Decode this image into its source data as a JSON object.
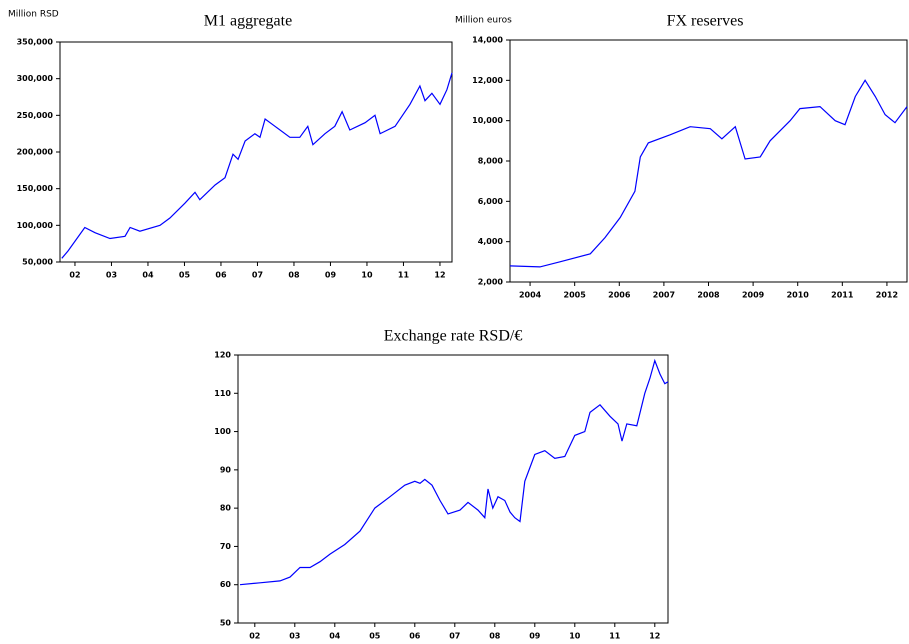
{
  "chart_data": [
    {
      "type": "line",
      "title": "M1 aggregate",
      "ylabel": "Million RSD",
      "color": "#0000ff",
      "x": [
        2002.14,
        2002.31,
        2002.77,
        2003.05,
        2003.46,
        2003.87,
        2004.01,
        2004.28,
        2004.83,
        2005.1,
        2005.51,
        2005.79,
        2005.92,
        2006.34,
        2006.61,
        2006.83,
        2006.97,
        2007.16,
        2007.43,
        2007.57,
        2007.71,
        2007.98,
        2008.39,
        2008.66,
        2008.88,
        2009.02,
        2009.35,
        2009.62,
        2009.82,
        2010.03,
        2010.45,
        2010.72,
        2010.86,
        2011.27,
        2011.68,
        2011.95,
        2012.09,
        2012.28,
        2012.5,
        2012.69,
        2012.83
      ],
      "values": [
        55000,
        65000,
        97000,
        90000,
        82000,
        85000,
        97000,
        92000,
        100000,
        110000,
        130000,
        145000,
        135000,
        155000,
        165000,
        197000,
        190000,
        215000,
        225000,
        220000,
        245000,
        235000,
        220000,
        220000,
        235000,
        210000,
        225000,
        235000,
        255000,
        230000,
        240000,
        250000,
        225000,
        235000,
        265000,
        290000,
        270000,
        280000,
        265000,
        285000,
        308000
      ],
      "xlim": [
        2002.09,
        2012.83
      ],
      "xticks": [
        {
          "value": 2002.5,
          "label": "02"
        },
        {
          "value": 2003.5,
          "label": "03"
        },
        {
          "value": 2004.5,
          "label": "04"
        },
        {
          "value": 2005.5,
          "label": "05"
        },
        {
          "value": 2006.5,
          "label": "06"
        },
        {
          "value": 2007.5,
          "label": "07"
        },
        {
          "value": 2008.5,
          "label": "08"
        },
        {
          "value": 2009.5,
          "label": "09"
        },
        {
          "value": 2010.5,
          "label": "10"
        },
        {
          "value": 2011.5,
          "label": "11"
        },
        {
          "value": 2012.5,
          "label": "12"
        }
      ],
      "ylim": [
        50000,
        350000
      ],
      "yticks": [
        {
          "value": 50000,
          "label": "50,000"
        },
        {
          "value": 100000,
          "label": "100,000"
        },
        {
          "value": 150000,
          "label": "150,000"
        },
        {
          "value": 200000,
          "label": "200,000"
        },
        {
          "value": 250000,
          "label": "250,000"
        },
        {
          "value": 300000,
          "label": "300,000"
        },
        {
          "value": 350000,
          "label": "350,000"
        }
      ]
    },
    {
      "type": "line",
      "title": "FX reserves",
      "ylabel": "Million euros",
      "color": "#0000ff",
      "x": [
        2004.05,
        2004.72,
        2005.17,
        2005.85,
        2006.18,
        2006.52,
        2006.85,
        2006.97,
        2007.15,
        2007.64,
        2008.09,
        2008.54,
        2008.8,
        2009.1,
        2009.32,
        2009.66,
        2009.88,
        2010.33,
        2010.55,
        2011.0,
        2011.34,
        2011.56,
        2011.79,
        2012.01,
        2012.24,
        2012.46,
        2012.68,
        2012.95
      ],
      "values": [
        2800,
        2750,
        3000,
        3400,
        4200,
        5200,
        6500,
        8200,
        8900,
        9300,
        9700,
        9600,
        9100,
        9700,
        8100,
        8200,
        9000,
        10000,
        10600,
        10700,
        10000,
        9800,
        11200,
        12000,
        11200,
        10300,
        9900,
        10700
      ],
      "xlim": [
        2004.05,
        2012.95
      ],
      "xticks": [
        {
          "value": 2004.5,
          "label": "2004"
        },
        {
          "value": 2005.5,
          "label": "2005"
        },
        {
          "value": 2006.5,
          "label": "2006"
        },
        {
          "value": 2007.5,
          "label": "2007"
        },
        {
          "value": 2008.5,
          "label": "2008"
        },
        {
          "value": 2009.5,
          "label": "2009"
        },
        {
          "value": 2010.5,
          "label": "2010"
        },
        {
          "value": 2011.5,
          "label": "2011"
        },
        {
          "value": 2012.5,
          "label": "2012"
        }
      ],
      "ylim": [
        2000,
        14000
      ],
      "yticks": [
        {
          "value": 2000,
          "label": "2,000"
        },
        {
          "value": 4000,
          "label": "4,000"
        },
        {
          "value": 6000,
          "label": "6,000"
        },
        {
          "value": 8000,
          "label": "8,000"
        },
        {
          "value": 10000,
          "label": "10,000"
        },
        {
          "value": 12000,
          "label": "12,000"
        },
        {
          "value": 14000,
          "label": "14,000"
        }
      ]
    },
    {
      "type": "line",
      "title": "Exchange rate RSD/€",
      "color": "#0000ff",
      "x": [
        2002.13,
        2002.63,
        2003.13,
        2003.38,
        2003.63,
        2003.88,
        2004.13,
        2004.38,
        2004.75,
        2005.13,
        2005.5,
        2005.88,
        2006.25,
        2006.5,
        2006.63,
        2006.75,
        2006.93,
        2007.13,
        2007.33,
        2007.63,
        2007.83,
        2008.08,
        2008.25,
        2008.33,
        2008.45,
        2008.58,
        2008.75,
        2008.88,
        2009.0,
        2009.13,
        2009.25,
        2009.5,
        2009.75,
        2010.0,
        2010.25,
        2010.5,
        2010.75,
        2010.88,
        2011.13,
        2011.38,
        2011.58,
        2011.68,
        2011.8,
        2012.05,
        2012.25,
        2012.38,
        2012.5,
        2012.63,
        2012.75,
        2012.83
      ],
      "values": [
        60,
        60.5,
        61,
        62,
        64.5,
        64.5,
        66,
        68,
        70.5,
        74,
        80,
        83,
        86,
        87,
        86.5,
        87.5,
        86,
        82,
        78.5,
        79.5,
        81.5,
        79.5,
        77.5,
        85,
        80,
        83,
        82,
        79,
        77.5,
        76.5,
        87,
        94,
        95,
        93,
        93.5,
        99,
        100,
        105,
        107,
        104,
        102,
        97.5,
        102,
        101.5,
        110,
        114,
        118.5,
        115,
        112.5,
        113
      ],
      "xlim": [
        2002.08,
        2012.83
      ],
      "xticks": [
        {
          "value": 2002.5,
          "label": "02"
        },
        {
          "value": 2003.5,
          "label": "03"
        },
        {
          "value": 2004.5,
          "label": "04"
        },
        {
          "value": 2005.5,
          "label": "05"
        },
        {
          "value": 2006.5,
          "label": "06"
        },
        {
          "value": 2007.5,
          "label": "07"
        },
        {
          "value": 2008.5,
          "label": "08"
        },
        {
          "value": 2009.5,
          "label": "09"
        },
        {
          "value": 2010.5,
          "label": "10"
        },
        {
          "value": 2011.5,
          "label": "11"
        },
        {
          "value": 2012.5,
          "label": "12"
        }
      ],
      "ylim": [
        50,
        120
      ],
      "yticks": [
        50,
        60,
        70,
        80,
        90,
        100,
        110,
        120
      ]
    }
  ]
}
